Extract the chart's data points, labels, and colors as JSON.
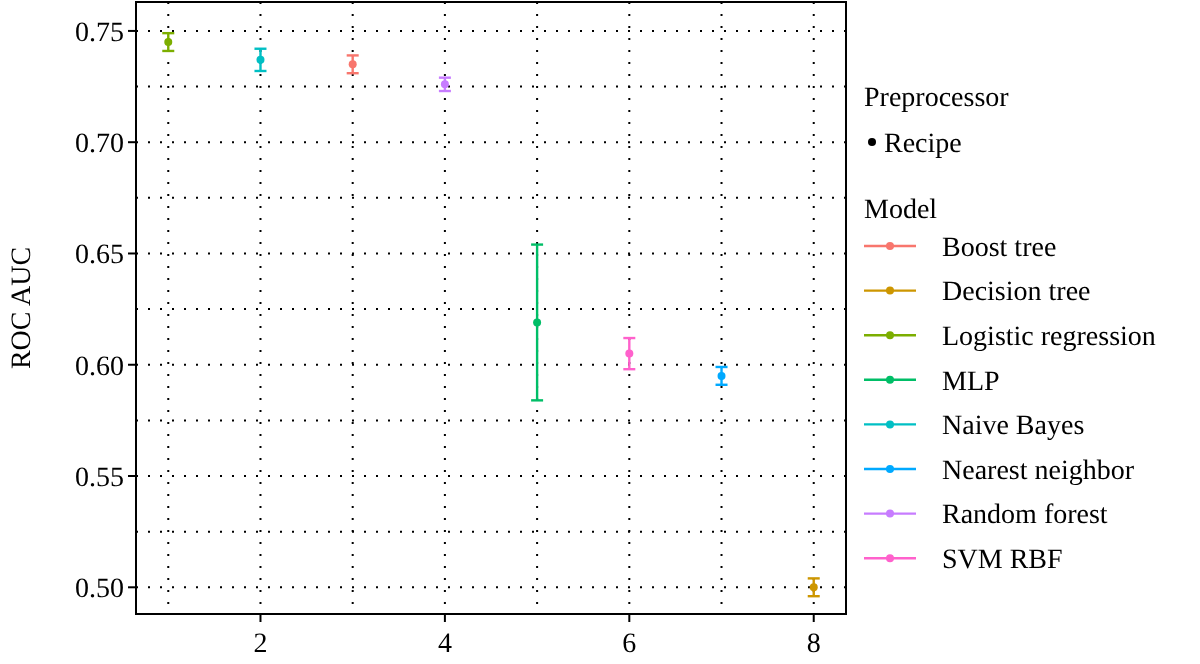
{
  "chart_data": {
    "type": "scatter",
    "ylabel": "ROC AUC",
    "legend_title": "Model",
    "legend": "right",
    "marker": "circle",
    "grid": true,
    "annotations": [
      "Preprocessor",
      "Recipe"
    ],
    "xlim": [
      0.65,
      8.35
    ],
    "xticks": [
      {
        "value": 1,
        "label": null
      },
      2,
      {
        "value": 3,
        "label": null
      },
      4,
      {
        "value": 5,
        "label": null
      },
      6,
      {
        "value": 7,
        "label": null
      },
      8
    ],
    "ylim": [
      0.488,
      0.763
    ],
    "yticks": [
      {
        "value": 0.5,
        "label": "0.50"
      },
      {
        "value": 0.525,
        "label": null
      },
      0.55,
      {
        "value": 0.575,
        "label": null
      },
      {
        "value": 0.6,
        "label": "0.60"
      },
      {
        "value": 0.625,
        "label": null
      },
      0.65,
      {
        "value": 0.675,
        "label": null
      },
      {
        "value": 0.7,
        "label": "0.70"
      },
      {
        "value": 0.725,
        "label": null
      },
      0.75
    ],
    "series": [
      {
        "name": "Boost tree",
        "color": "#f8766d",
        "x": [
          3
        ],
        "values": [
          0.735
        ],
        "errors": [
          0.004
        ]
      },
      {
        "name": "Decision tree",
        "color": "#cd9600",
        "x": [
          8
        ],
        "values": [
          0.5
        ],
        "errors": [
          0.004
        ]
      },
      {
        "name": "Logistic regression",
        "color": "#7cae00",
        "x": [
          1
        ],
        "values": [
          0.745
        ],
        "errors": [
          0.004
        ]
      },
      {
        "name": "MLP",
        "color": "#00be67",
        "x": [
          5
        ],
        "values": [
          0.619
        ],
        "errors": [
          [
            0.584,
            0.654
          ]
        ]
      },
      {
        "name": "Naive Bayes",
        "color": "#00bfc4",
        "x": [
          2
        ],
        "values": [
          0.737
        ],
        "errors": [
          0.005
        ]
      },
      {
        "name": "Nearest neighbor",
        "color": "#00a9ff",
        "x": [
          7
        ],
        "values": [
          0.595
        ],
        "errors": [
          0.004
        ]
      },
      {
        "name": "Random forest",
        "color": "#c77cff",
        "x": [
          4
        ],
        "values": [
          0.726
        ],
        "errors": [
          0.003
        ]
      },
      {
        "name": "SVM RBF",
        "color": "#ff61cc",
        "x": [
          6
        ],
        "values": [
          0.605
        ],
        "errors": [
          0.007
        ]
      }
    ]
  }
}
